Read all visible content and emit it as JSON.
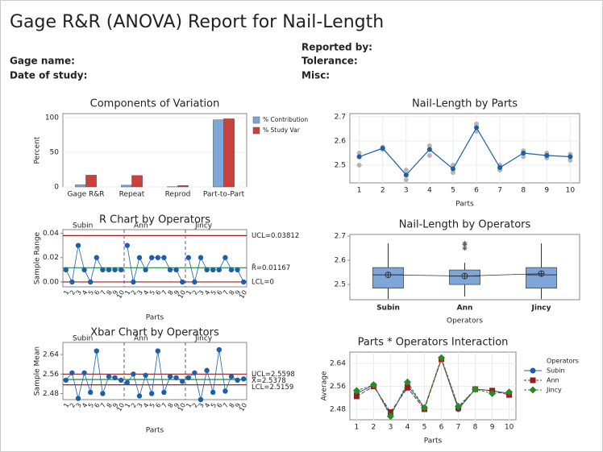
{
  "header": {
    "title": "Gage R&R (ANOVA) Report for Nail-Length",
    "gage_name": "Gage name:",
    "date_of_study": "Date of study:",
    "reported_by": "Reported by:",
    "tolerance": "Tolerance:",
    "misc": "Misc:"
  },
  "chart_data": [
    {
      "type": "bar",
      "title": "Components of Variation",
      "ylabel": "Percent",
      "categories": [
        "Gage R&R",
        "Repeat",
        "Reprod",
        "Part-to-Part"
      ],
      "series": [
        {
          "name": "% Contribution",
          "color": "#7fa6d8",
          "values": [
            3,
            2.5,
            0.3,
            97
          ]
        },
        {
          "name": "% Study Var",
          "color": "#c9413d",
          "values": [
            17,
            16.5,
            2,
            98.5
          ]
        }
      ],
      "ylim": [
        0,
        106
      ],
      "yticks": [
        0,
        50,
        100
      ],
      "grid": true
    },
    {
      "type": "line",
      "title": "Nail-Length by Parts",
      "xlabel": "Parts",
      "x": [
        1,
        2,
        3,
        4,
        5,
        6,
        7,
        8,
        9,
        10
      ],
      "series": [
        {
          "color": "#1f5fa8",
          "values": [
            2.535,
            2.57,
            2.46,
            2.565,
            2.485,
            2.655,
            2.49,
            2.55,
            2.54,
            2.535
          ]
        }
      ],
      "points": {
        "color": "#9a9a9a",
        "x": [
          1,
          1,
          1,
          2,
          2,
          2,
          3,
          3,
          3,
          4,
          4,
          4,
          5,
          5,
          5,
          6,
          6,
          6,
          7,
          7,
          7,
          8,
          8,
          8,
          9,
          9,
          9,
          10,
          10,
          10
        ],
        "y": [
          2.5,
          2.535,
          2.55,
          2.565,
          2.57,
          2.575,
          2.44,
          2.46,
          2.48,
          2.54,
          2.565,
          2.58,
          2.47,
          2.485,
          2.5,
          2.64,
          2.655,
          2.67,
          2.48,
          2.49,
          2.5,
          2.535,
          2.55,
          2.56,
          2.53,
          2.54,
          2.55,
          2.52,
          2.535,
          2.545
        ]
      },
      "xlim": [
        0.6,
        10.4
      ],
      "xticks": [
        1,
        2,
        3,
        4,
        5,
        6,
        7,
        8,
        9,
        10
      ],
      "ylim": [
        2.427,
        2.713
      ],
      "yticks": [
        2.5,
        2.6,
        2.7
      ],
      "grid": true
    },
    {
      "type": "control",
      "title": "R Chart by Operators",
      "xlabel": "Parts",
      "ylabel": "Sample Range",
      "categories": [
        "1",
        "2",
        "3",
        "4",
        "5",
        "6",
        "7",
        "8",
        "9",
        "10"
      ],
      "series": [
        {
          "name": "Subin",
          "color": "#1f5fa8",
          "values": [
            0.01,
            0,
            0.03,
            0.01,
            0,
            0.02,
            0.01,
            0.01,
            0.01,
            0.01
          ]
        },
        {
          "name": "Ann",
          "color": "#1f5fa8",
          "values": [
            0.03,
            0,
            0.02,
            0.01,
            0.02,
            0.02,
            0.02,
            0.01,
            0.01,
            0
          ]
        },
        {
          "name": "Jincy",
          "color": "#1f5fa8",
          "values": [
            0.02,
            0,
            0.02,
            0.01,
            0.01,
            0.01,
            0.02,
            0.01,
            0.01,
            0
          ]
        }
      ],
      "limits": [
        {
          "value": 0.03812,
          "label": "UCL=0.03812",
          "color": "#a01c1c"
        },
        {
          "value": 0.01167,
          "label": "R̄=0.01167",
          "color": "#1b8a3a"
        },
        {
          "value": 0,
          "label": "LCL=0",
          "color": "#a01c1c"
        }
      ],
      "ylim": [
        -0.004,
        0.043
      ],
      "yticks": [
        {
          "value": 0,
          "label": "0.00"
        },
        {
          "value": 0.02,
          "label": "0.02"
        },
        {
          "value": 0.04,
          "label": "0.04"
        }
      ]
    },
    {
      "type": "control",
      "title": "Xbar Chart by Operators",
      "xlabel": "Parts",
      "ylabel": "Sample Mean",
      "categories": [
        "1",
        "2",
        "3",
        "4",
        "5",
        "6",
        "7",
        "8",
        "9",
        "10"
      ],
      "series": [
        {
          "name": "Subin",
          "color": "#1f5fa8",
          "values": [
            2.535,
            2.565,
            2.46,
            2.565,
            2.485,
            2.655,
            2.48,
            2.55,
            2.545,
            2.535
          ]
        },
        {
          "name": "Ann",
          "color": "#1f5fa8",
          "values": [
            2.525,
            2.56,
            2.47,
            2.555,
            2.48,
            2.655,
            2.485,
            2.55,
            2.545,
            2.53
          ]
        },
        {
          "name": "Jincy",
          "color": "#1f5fa8",
          "values": [
            2.545,
            2.565,
            2.455,
            2.575,
            2.485,
            2.66,
            2.49,
            2.55,
            2.535,
            2.54
          ]
        }
      ],
      "limits": [
        {
          "value": 2.5598,
          "label": "UCL=2.5598",
          "color": "#a01c1c"
        },
        {
          "value": 2.5378,
          "label": "X̿=2.5378",
          "color": "#1b8a3a"
        },
        {
          "value": 2.5159,
          "label": "LCL=2.5159",
          "color": "#a01c1c"
        }
      ],
      "ylim": [
        2.455,
        2.69
      ],
      "yticks": [
        2.48,
        2.56,
        2.64
      ]
    },
    {
      "type": "box",
      "title": "Nail-Length by Operators",
      "xlabel": "Operators",
      "categories": [
        "Subin",
        "Ann",
        "Jincy"
      ],
      "color": "#7fa6d8",
      "boxes": [
        {
          "min": 2.44,
          "q1": 2.485,
          "median": 2.54,
          "q3": 2.57,
          "max": 2.67,
          "mean": 2.54,
          "outliers": []
        },
        {
          "min": 2.45,
          "q1": 2.5,
          "median": 2.535,
          "q3": 2.56,
          "max": 2.59,
          "mean": 2.535,
          "outliers": [
            2.65,
            2.665,
            2.67
          ]
        },
        {
          "min": 2.44,
          "q1": 2.485,
          "median": 2.54,
          "q3": 2.57,
          "max": 2.67,
          "mean": 2.545,
          "outliers": []
        }
      ],
      "ylim": [
        2.437,
        2.707
      ],
      "yticks": [
        2.5,
        2.6,
        2.7
      ]
    },
    {
      "type": "interaction",
      "title": "Parts * Operators Interaction",
      "xlabel": "Parts",
      "ylabel": "Average",
      "legend_title": "Operators",
      "x": [
        1,
        2,
        3,
        4,
        5,
        6,
        7,
        8,
        9,
        10
      ],
      "series": [
        {
          "name": "Subin",
          "color": "#1f5fa8",
          "marker": "circle",
          "values": [
            2.535,
            2.565,
            2.46,
            2.565,
            2.485,
            2.655,
            2.48,
            2.55,
            2.545,
            2.535
          ]
        },
        {
          "name": "Ann",
          "color": "#9b1b1b",
          "marker": "square",
          "values": [
            2.525,
            2.56,
            2.47,
            2.555,
            2.48,
            2.655,
            2.485,
            2.55,
            2.545,
            2.53
          ]
        },
        {
          "name": "Jincy",
          "color": "#2a8a2a",
          "marker": "diamond",
          "values": [
            2.545,
            2.565,
            2.455,
            2.575,
            2.485,
            2.66,
            2.49,
            2.55,
            2.535,
            2.54
          ]
        }
      ],
      "xlim": [
        0.6,
        10.4
      ],
      "xticks": [
        1,
        2,
        3,
        4,
        5,
        6,
        7,
        8,
        9,
        10
      ],
      "ylim": [
        2.443,
        2.68
      ],
      "yticks": [
        2.48,
        2.56,
        2.64
      ],
      "grid": true
    }
  ]
}
